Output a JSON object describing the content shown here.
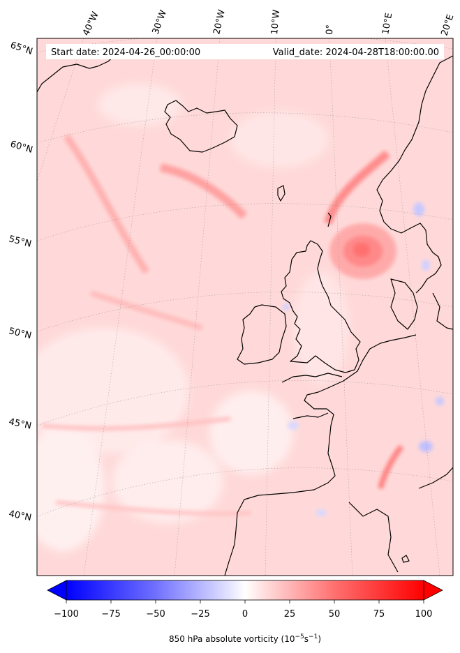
{
  "header": {
    "start_date": "Start date: 2024-04-26_00:00:00",
    "valid_date": "Valid_date: 2024-04-28T18:00:00.00"
  },
  "map": {
    "projection": "conic",
    "longitude_labels": [
      "40°W",
      "30°W",
      "20°W",
      "10°W",
      "0°",
      "10°E",
      "20°E"
    ],
    "latitude_labels": [
      "65°N",
      "60°N",
      "55°N",
      "50°N",
      "45°N",
      "40°N"
    ],
    "field": "850 hPa absolute vorticity",
    "colors": {
      "negative": "#0000ff",
      "zero": "#ffffff",
      "positive": "#ff0000",
      "coast": "#000000"
    }
  },
  "colorbar": {
    "ticks": [
      "−100",
      "−75",
      "−50",
      "−25",
      "0",
      "25",
      "50",
      "75",
      "100"
    ],
    "label_text": "850 hPa absolute vorticity (10",
    "label_exp1": "−5",
    "label_mid": "s",
    "label_exp2": "−1",
    "label_end": ")",
    "range": [
      -100,
      100
    ],
    "extend": "both",
    "colormap": "bwr"
  }
}
